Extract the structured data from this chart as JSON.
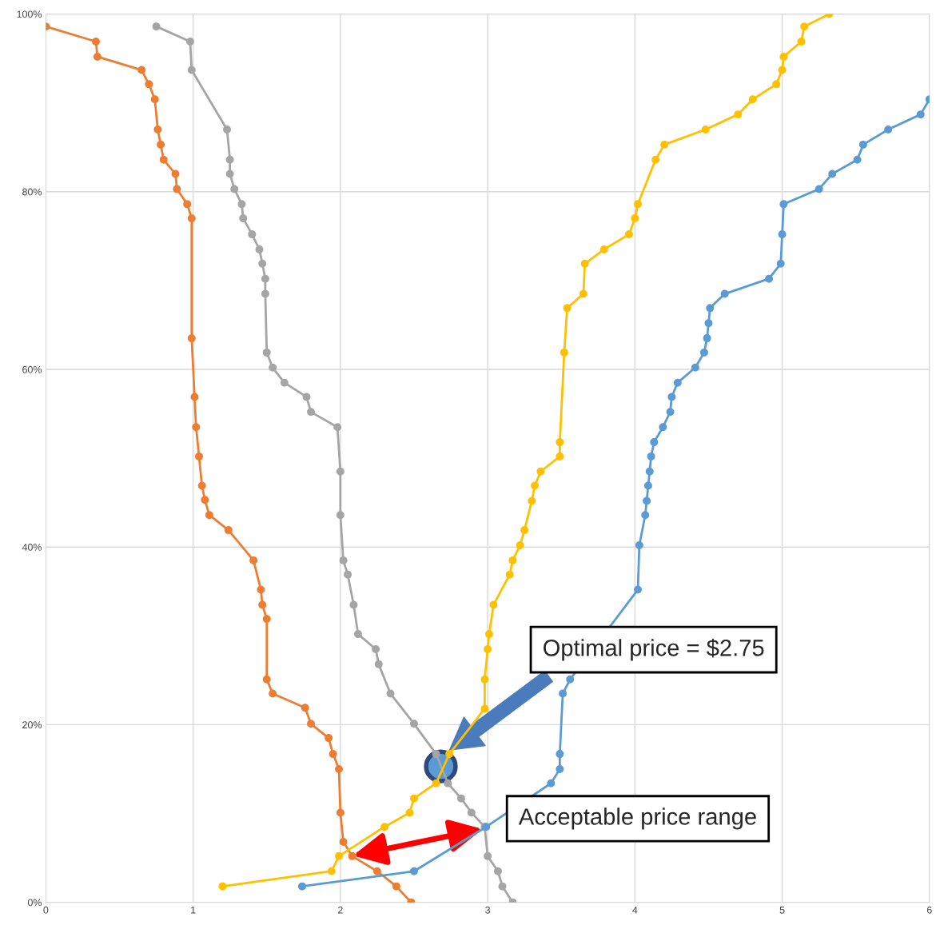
{
  "chart_data": {
    "type": "line",
    "marker": "circle",
    "grid": true,
    "legend": false,
    "xlim": [
      0,
      6
    ],
    "xticks": [
      0,
      1,
      2,
      3,
      4,
      5,
      6
    ],
    "ylim": [
      0,
      100
    ],
    "yticks": [
      {
        "value": 0,
        "label": "0%"
      },
      {
        "value": 20,
        "label": "20%"
      },
      {
        "value": 40,
        "label": "40%"
      },
      {
        "value": 60,
        "label": "60%"
      },
      {
        "value": 80,
        "label": "80%"
      },
      {
        "value": 100,
        "label": "100%"
      }
    ],
    "series": [
      {
        "color": "#ed7d31",
        "x": [
          0,
          0.34,
          0.35,
          0.65,
          0.7,
          0.74,
          0.76,
          0.78,
          0.8,
          0.88,
          0.89,
          0.96,
          0.99,
          0.99,
          1.01,
          1.02,
          1.04,
          1.06,
          1.08,
          1.11,
          1.24,
          1.41,
          1.46,
          1.47,
          1.5,
          1.5,
          1.54,
          1.76,
          1.8,
          1.92,
          1.95,
          1.99,
          2.0,
          2.02,
          2.08,
          2.25,
          2.38,
          2.48
        ],
        "values": [
          98.6,
          96.9,
          95.2,
          93.7,
          92.1,
          90.4,
          87.0,
          85.3,
          83.6,
          82.0,
          80.3,
          78.6,
          77.0,
          63.5,
          56.9,
          53.5,
          50.2,
          46.9,
          45.3,
          43.6,
          41.9,
          38.5,
          35.2,
          33.5,
          31.9,
          25.1,
          23.5,
          21.9,
          20.1,
          18.5,
          16.7,
          15.0,
          10.1,
          6.8,
          5.2,
          3.5,
          1.8,
          0
        ]
      },
      {
        "color": "#a5a5a5",
        "x": [
          0.75,
          0.98,
          0.99,
          1.23,
          1.25,
          1.25,
          1.28,
          1.33,
          1.34,
          1.4,
          1.45,
          1.47,
          1.49,
          1.49,
          1.5,
          1.54,
          1.62,
          1.77,
          1.8,
          1.98,
          2.0,
          2.0,
          2.02,
          2.05,
          2.09,
          2.12,
          2.24,
          2.26,
          2.34,
          2.5,
          2.65,
          2.73,
          2.82,
          2.89,
          2.98,
          3.0,
          3.07,
          3.1,
          3.17
        ],
        "values": [
          98.6,
          96.9,
          93.7,
          87.0,
          83.6,
          82.0,
          80.3,
          78.6,
          77.0,
          75.2,
          73.5,
          71.9,
          70.2,
          68.5,
          61.9,
          60.2,
          58.5,
          56.9,
          55.2,
          53.5,
          48.5,
          43.6,
          38.5,
          36.9,
          33.5,
          30.2,
          28.5,
          26.8,
          23.5,
          20.1,
          16.7,
          13.4,
          11.7,
          10.1,
          8.5,
          5.2,
          3.5,
          1.8,
          0
        ]
      },
      {
        "color": "#ffc000",
        "x": [
          1.2,
          1.94,
          1.99,
          2.3,
          2.47,
          2.5,
          2.65,
          2.74,
          2.98,
          2.98,
          3.0,
          3.01,
          3.04,
          3.15,
          3.17,
          3.22,
          3.25,
          3.3,
          3.32,
          3.36,
          3.49,
          3.49,
          3.52,
          3.54,
          3.65,
          3.66,
          3.79,
          3.96,
          4.0,
          4.02,
          4.14,
          4.2,
          4.48,
          4.7,
          4.8,
          4.96,
          5.0,
          5.01,
          5.13,
          5.15,
          5.32
        ],
        "values": [
          1.8,
          3.5,
          5.2,
          8.5,
          10.1,
          11.7,
          13.4,
          16.7,
          21.8,
          25.1,
          28.5,
          30.2,
          33.5,
          36.9,
          38.5,
          40.2,
          41.9,
          45.2,
          46.9,
          48.5,
          50.2,
          51.8,
          61.9,
          66.9,
          68.5,
          71.9,
          73.5,
          75.2,
          77.0,
          78.6,
          83.6,
          85.3,
          87.0,
          88.7,
          90.4,
          92.1,
          93.7,
          95.2,
          96.9,
          98.6,
          100
        ]
      },
      {
        "color": "#5b9bd5",
        "x": [
          1.74,
          2.5,
          2.99,
          3.43,
          3.49,
          3.49,
          3.51,
          3.56,
          4.02,
          4.03,
          4.07,
          4.08,
          4.09,
          4.1,
          4.11,
          4.13,
          4.19,
          4.24,
          4.25,
          4.29,
          4.41,
          4.47,
          4.49,
          4.5,
          4.51,
          4.61,
          4.91,
          4.99,
          5.0,
          5.01,
          5.25,
          5.34,
          5.51,
          5.55,
          5.72,
          5.94,
          6.0
        ],
        "values": [
          1.8,
          3.5,
          8.5,
          13.4,
          15.0,
          16.7,
          23.5,
          25.1,
          35.2,
          40.2,
          43.6,
          45.2,
          46.9,
          48.5,
          50.2,
          51.8,
          53.5,
          55.2,
          56.9,
          58.5,
          60.2,
          61.9,
          63.5,
          65.2,
          66.9,
          68.5,
          70.2,
          71.9,
          75.2,
          78.6,
          80.3,
          82.0,
          83.6,
          85.3,
          87.0,
          88.7,
          90.4
        ]
      }
    ],
    "annotations": [
      "Optimal price = $2.75",
      "Acceptable price range"
    ]
  }
}
